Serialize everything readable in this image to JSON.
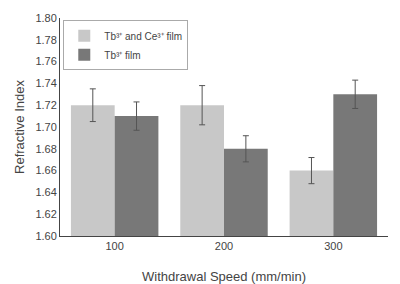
{
  "chart_data": {
    "type": "bar",
    "categories": [
      "100",
      "200",
      "300"
    ],
    "series": [
      {
        "name": "Tb³⁺ and Ce³⁺ film",
        "color": "#c8c8c8",
        "values": [
          1.72,
          1.72,
          1.66
        ],
        "errors": [
          0.015,
          0.018,
          0.012
        ]
      },
      {
        "name": "Tb³⁺ film",
        "color": "#787878",
        "values": [
          1.71,
          1.68,
          1.73
        ],
        "errors": [
          0.013,
          0.012,
          0.013
        ]
      }
    ],
    "xlabel": "Withdrawal Speed (mm/min)",
    "ylabel": "Refractive Index",
    "ylim": [
      1.6,
      1.8
    ],
    "yticks": [
      {
        "value": 1.6,
        "label": "1.60"
      },
      1.62,
      1.64,
      1.66,
      1.68,
      {
        "value": 1.7,
        "label": "1.70"
      },
      1.72,
      1.74,
      1.76,
      1.78,
      {
        "value": 1.8,
        "label": "1.80"
      }
    ],
    "grid": false,
    "legend": "upper left"
  }
}
